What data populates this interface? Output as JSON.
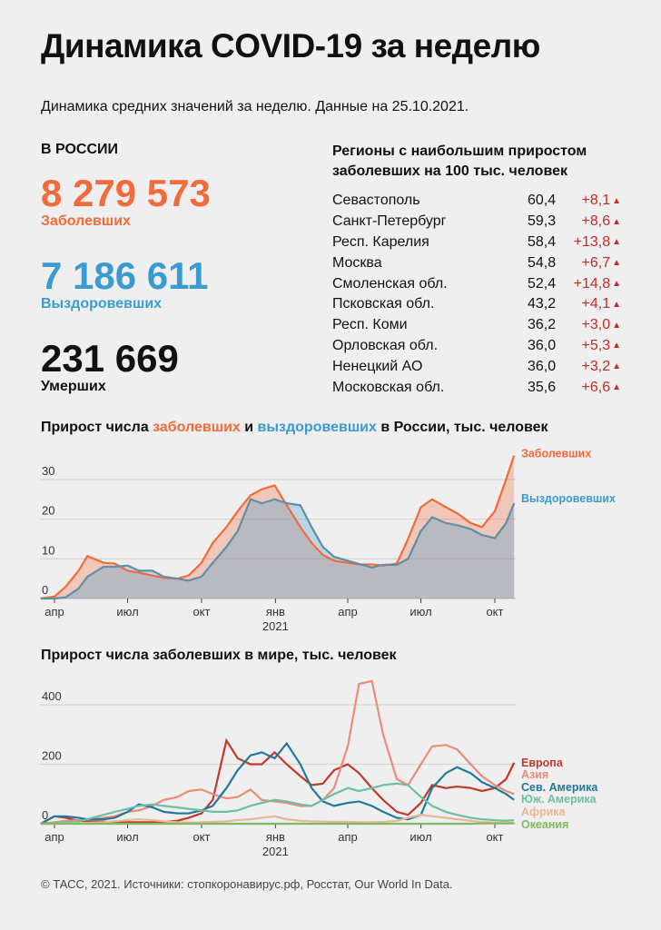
{
  "title": "Динамика COVID-19 за неделю",
  "subtitle": "Динамика средних значений за неделю. Данные на 25.10.2021.",
  "russia": {
    "heading": "В РОССИИ",
    "cases": "8 279 573",
    "cases_label": "Заболевших",
    "recovered": "7 186 611",
    "recovered_label": "Выздоровевших",
    "deaths": "231 669",
    "deaths_label": "Умерших"
  },
  "regions": {
    "heading_line1": "Регионы с наибольшим приростом",
    "heading_line2": "заболевших на 100 тыс. человек",
    "rows": [
      {
        "name": "Севастополь",
        "value": "60,4",
        "delta": "+8,1"
      },
      {
        "name": "Санкт-Петербург",
        "value": "59,3",
        "delta": "+8,6"
      },
      {
        "name": "Респ. Карелия",
        "value": "58,4",
        "delta": "+13,8"
      },
      {
        "name": "Москва",
        "value": "54,8",
        "delta": "+6,7"
      },
      {
        "name": "Смоленская обл.",
        "value": "52,4",
        "delta": "+14,8"
      },
      {
        "name": "Псковская обл.",
        "value": "43,2",
        "delta": "+4,1"
      },
      {
        "name": "Респ. Коми",
        "value": "36,2",
        "delta": "+3,0"
      },
      {
        "name": "Орловская обл.",
        "value": "36,0",
        "delta": "+5,3"
      },
      {
        "name": "Ненецкий АО",
        "value": "36,0",
        "delta": "+3,2"
      },
      {
        "name": "Московская обл.",
        "value": "35,6",
        "delta": "+6,6"
      }
    ],
    "up_icon": "triangle-up"
  },
  "colors": {
    "cases": "#f26b3a",
    "recovered": "#3a9bd0",
    "up": "#c62828"
  },
  "footer": "© ТАСС, 2021. Источники: стопкоронавирус.рф, Росстат, Our World In Data.",
  "chart_data": [
    {
      "type": "area",
      "title_parts": [
        "Прирост числа ",
        "заболевших",
        " и ",
        "выздоровевших",
        " в России, тыс. человек"
      ],
      "x": [
        "2020-03-15",
        "2020-04-01",
        "2020-04-15",
        "2020-05-01",
        "2020-05-12",
        "2020-06-01",
        "2020-06-15",
        "2020-07-01",
        "2020-07-15",
        "2020-08-01",
        "2020-08-15",
        "2020-09-01",
        "2020-09-15",
        "2020-10-01",
        "2020-10-15",
        "2020-11-01",
        "2020-11-15",
        "2020-12-01",
        "2020-12-15",
        "2020-12-31",
        "2021-01-15",
        "2021-02-01",
        "2021-02-15",
        "2021-03-01",
        "2021-03-15",
        "2021-04-01",
        "2021-04-15",
        "2021-05-01",
        "2021-05-15",
        "2021-06-01",
        "2021-06-15",
        "2021-07-01",
        "2021-07-15",
        "2021-08-01",
        "2021-08-15",
        "2021-09-01",
        "2021-09-15",
        "2021-10-01",
        "2021-10-15",
        "2021-10-25"
      ],
      "series": [
        {
          "name": "Заболевших",
          "color": "#f26b3a",
          "values": [
            0,
            0.5,
            3,
            7,
            10.7,
            9,
            8.8,
            7,
            6.5,
            5.8,
            5.2,
            5,
            5.8,
            9,
            14,
            18,
            22,
            26,
            27.5,
            28.5,
            23.5,
            18,
            14,
            11,
            9.5,
            9,
            8.6,
            8.6,
            8.3,
            8.8,
            15,
            23,
            25,
            23,
            21.5,
            19,
            18,
            22,
            30,
            36
          ]
        },
        {
          "name": "Выздоровевших",
          "color": "#3a9bd0",
          "values": [
            0,
            0,
            0.3,
            2.5,
            5.5,
            8,
            8,
            8.3,
            7,
            7,
            5.5,
            5,
            4.5,
            5.5,
            9,
            13,
            17,
            25,
            24,
            25,
            24,
            23.5,
            18,
            13,
            10.5,
            9.5,
            8.7,
            7.8,
            8.5,
            8.5,
            10,
            17,
            20.5,
            19,
            18.5,
            17.5,
            16,
            15.2,
            19,
            24
          ]
        }
      ],
      "yticks": [
        0,
        10,
        20,
        30
      ],
      "ylim": [
        0,
        37
      ],
      "xticks": [
        {
          "date": "2020-04-01",
          "label": "апр"
        },
        {
          "date": "2020-07-01",
          "label": "июл"
        },
        {
          "date": "2020-10-01",
          "label": "окт"
        },
        {
          "date": "2021-01-01",
          "label": "янв",
          "sub": "2021"
        },
        {
          "date": "2021-04-01",
          "label": "апр"
        },
        {
          "date": "2021-07-01",
          "label": "июл"
        },
        {
          "date": "2021-10-01",
          "label": "окт"
        }
      ],
      "grid": true,
      "legend": "right-end labels"
    },
    {
      "type": "line",
      "title": "Прирост числа заболевших в мире, тыс. человек",
      "x": [
        "2020-03-15",
        "2020-04-01",
        "2020-04-15",
        "2020-05-01",
        "2020-05-12",
        "2020-06-01",
        "2020-06-15",
        "2020-07-01",
        "2020-07-15",
        "2020-08-01",
        "2020-08-15",
        "2020-09-01",
        "2020-09-15",
        "2020-10-01",
        "2020-10-15",
        "2020-11-01",
        "2020-11-15",
        "2020-12-01",
        "2020-12-15",
        "2020-12-31",
        "2021-01-15",
        "2021-02-01",
        "2021-02-15",
        "2021-03-01",
        "2021-03-15",
        "2021-04-01",
        "2021-04-15",
        "2021-05-01",
        "2021-05-15",
        "2021-06-01",
        "2021-06-15",
        "2021-07-01",
        "2021-07-15",
        "2021-08-01",
        "2021-08-15",
        "2021-09-01",
        "2021-09-15",
        "2021-10-01",
        "2021-10-15",
        "2021-10-25"
      ],
      "series": [
        {
          "name": "Европа",
          "color": "#c0392b",
          "values": [
            0,
            25,
            20,
            10,
            8,
            7,
            5,
            5,
            5,
            5,
            6,
            10,
            20,
            35,
            80,
            280,
            220,
            200,
            200,
            240,
            200,
            160,
            130,
            135,
            180,
            200,
            170,
            120,
            80,
            40,
            30,
            70,
            130,
            120,
            125,
            120,
            110,
            120,
            150,
            205
          ]
        },
        {
          "name": "Азия",
          "color": "#ee8a78",
          "values": [
            0,
            5,
            10,
            12,
            15,
            20,
            25,
            40,
            45,
            60,
            80,
            90,
            110,
            115,
            100,
            85,
            90,
            115,
            80,
            75,
            70,
            60,
            60,
            80,
            120,
            260,
            470,
            480,
            300,
            150,
            130,
            200,
            260,
            265,
            250,
            200,
            160,
            130,
            110,
            100
          ]
        },
        {
          "name": "Сев. Америка",
          "color": "#1f7a99",
          "values": [
            0,
            25,
            25,
            20,
            15,
            15,
            20,
            40,
            65,
            55,
            40,
            35,
            35,
            45,
            60,
            120,
            180,
            230,
            240,
            220,
            270,
            200,
            120,
            75,
            60,
            70,
            75,
            60,
            40,
            20,
            15,
            30,
            120,
            170,
            190,
            170,
            140,
            120,
            100,
            80
          ]
        },
        {
          "name": "Юж. Америка",
          "color": "#6cbfa5",
          "values": [
            0,
            2,
            5,
            8,
            15,
            30,
            40,
            50,
            60,
            65,
            60,
            55,
            50,
            45,
            40,
            40,
            45,
            60,
            70,
            80,
            75,
            65,
            60,
            80,
            100,
            120,
            110,
            120,
            130,
            135,
            130,
            90,
            60,
            40,
            30,
            20,
            15,
            12,
            10,
            12
          ]
        },
        {
          "name": "Африка",
          "color": "#eab495",
          "values": [
            0,
            0,
            1,
            2,
            3,
            5,
            8,
            12,
            15,
            12,
            8,
            5,
            4,
            5,
            6,
            8,
            12,
            15,
            20,
            25,
            15,
            10,
            8,
            7,
            6,
            6,
            5,
            5,
            6,
            10,
            20,
            30,
            25,
            20,
            15,
            10,
            6,
            4,
            3,
            3
          ]
        },
        {
          "name": "Океания",
          "color": "#7dbb5f",
          "values": [
            0,
            0,
            0,
            0,
            0,
            0,
            0,
            0,
            0,
            0,
            0,
            0,
            0,
            0,
            0,
            0,
            0,
            0,
            0,
            0,
            0,
            0,
            0,
            0,
            0,
            0,
            0,
            0,
            0,
            0,
            0,
            0,
            0,
            0,
            0,
            0,
            1,
            1,
            1,
            1
          ]
        }
      ],
      "yticks": [
        0,
        200,
        400
      ],
      "ylim": [
        0,
        490
      ],
      "xticks": [
        {
          "date": "2020-04-01",
          "label": "апр"
        },
        {
          "date": "2020-07-01",
          "label": "июл"
        },
        {
          "date": "2020-10-01",
          "label": "окт"
        },
        {
          "date": "2021-01-01",
          "label": "янв",
          "sub": "2021"
        },
        {
          "date": "2021-04-01",
          "label": "апр"
        },
        {
          "date": "2021-07-01",
          "label": "июл"
        },
        {
          "date": "2021-10-01",
          "label": "окт"
        }
      ],
      "grid": true,
      "legend": "right-end labels"
    }
  ]
}
